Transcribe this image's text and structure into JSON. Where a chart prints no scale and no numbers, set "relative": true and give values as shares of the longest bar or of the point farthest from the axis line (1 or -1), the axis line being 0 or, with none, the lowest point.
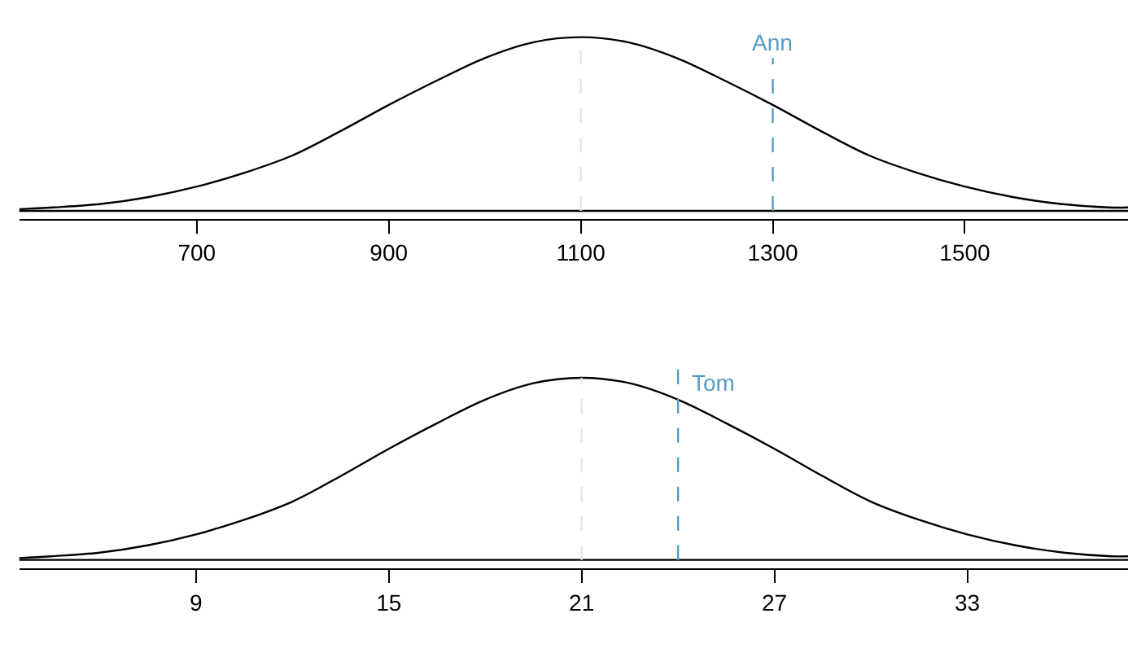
{
  "chart_data": [
    {
      "type": "line",
      "relative": true,
      "x": [
        515,
        550,
        600,
        650,
        700,
        750,
        800,
        850,
        900,
        950,
        1000,
        1050,
        1100,
        1150,
        1200,
        1250,
        1300,
        1350,
        1400,
        1450,
        1500,
        1550,
        1600,
        1650,
        1670
      ],
      "series": [
        {
          "color": "#000000",
          "values": [
            0.01,
            0.02,
            0.04,
            0.08,
            0.14,
            0.22,
            0.32,
            0.46,
            0.61,
            0.75,
            0.88,
            0.97,
            1,
            0.97,
            0.88,
            0.75,
            0.61,
            0.46,
            0.32,
            0.22,
            0.14,
            0.08,
            0.04,
            0.02,
            0.02
          ]
        }
      ],
      "xlim": [
        515,
        1670
      ],
      "xticks": [
        700,
        900,
        1100,
        1300,
        1500
      ],
      "tick_labels": "x",
      "marker": "none",
      "line_style": "solid",
      "ref_lines": [
        {
          "axis": "y",
          "value": 0,
          "color": "#000000",
          "line_style": "solid"
        },
        {
          "axis": "x",
          "value": 1100,
          "color": "#e6e6e6",
          "line_style": "dashed"
        },
        {
          "axis": "x",
          "value": 1300,
          "label": "Ann",
          "color": "#569bc6",
          "line_style": "dashed"
        }
      ]
    },
    {
      "type": "line",
      "relative": true,
      "x": [
        3.5,
        4.5,
        6,
        7.5,
        9,
        10.5,
        12,
        13.5,
        15,
        16.5,
        18,
        19.5,
        21,
        22.5,
        24,
        25.5,
        27,
        28.5,
        30,
        31.5,
        33,
        34.5,
        36,
        37.5,
        38
      ],
      "series": [
        {
          "color": "#000000",
          "values": [
            0.01,
            0.02,
            0.04,
            0.08,
            0.14,
            0.22,
            0.32,
            0.46,
            0.61,
            0.75,
            0.88,
            0.97,
            1,
            0.97,
            0.88,
            0.75,
            0.61,
            0.46,
            0.32,
            0.22,
            0.14,
            0.08,
            0.04,
            0.02,
            0.02
          ]
        }
      ],
      "xlim": [
        3.5,
        38
      ],
      "xticks": [
        9,
        15,
        21,
        27,
        33
      ],
      "tick_labels": "x",
      "marker": "none",
      "line_style": "solid",
      "ref_lines": [
        {
          "axis": "y",
          "value": 0,
          "color": "#000000",
          "line_style": "solid"
        },
        {
          "axis": "x",
          "value": 21,
          "color": "#e6e6e6",
          "line_style": "dashed"
        },
        {
          "axis": "x",
          "value": 24,
          "label": "Tom",
          "color": "#569bc6",
          "line_style": "dashed"
        }
      ]
    }
  ]
}
